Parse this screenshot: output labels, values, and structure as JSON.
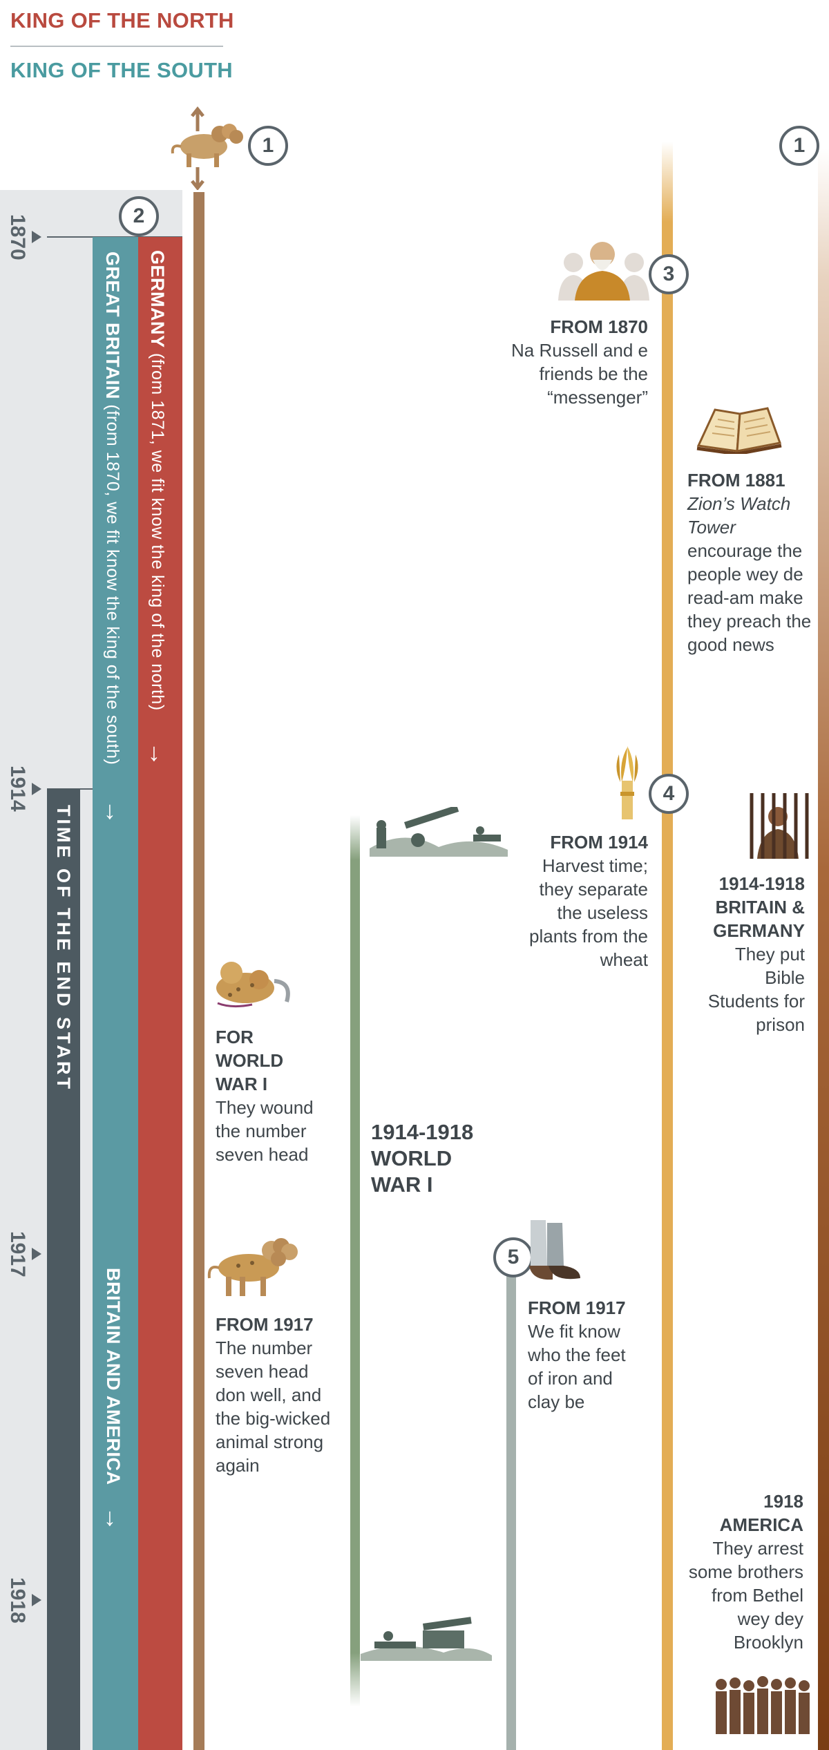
{
  "legend": {
    "north": "KING OF THE NORTH",
    "south": "KING OF THE SOUTH"
  },
  "colors": {
    "north": "#b94a3f",
    "south": "#4a9ba0",
    "britain": "#5b9aa3",
    "germany": "#bc4b41",
    "end": "#4d5a61",
    "beast": "#a57c58",
    "wwi": "#86a07d",
    "feet": "#a5b1ad",
    "harvest": "#e3ad55",
    "brown": "#8a4a1e"
  },
  "markers": {
    "m1a": "1",
    "m1b": "1",
    "m2": "2",
    "m3": "3",
    "m4": "4",
    "m5": "5"
  },
  "years": {
    "y1870": "1870",
    "y1914": "1914",
    "y1917": "1917",
    "y1918": "1918"
  },
  "bars": {
    "germany_name": "GERMANY",
    "germany_note": " (from 1871, we fit know the king of the north)",
    "britain_name": "GREAT BRITAIN",
    "britain_note": " (from 1870, we fit know the king of the south)",
    "britain_america": "BRITAIN AND AMERICA",
    "end_time": "TIME OF THE END START",
    "arrow": "↓"
  },
  "beast": {
    "wwi_title": "FOR WORLD WAR I",
    "wwi_body": "They wound the number seven head",
    "y1917_title": "FROM 1917",
    "y1917_body": "The number seven head don well, and the big-wicked animal strong again"
  },
  "worldwar": {
    "title1": "1914-1918",
    "title2": "WORLD",
    "title3": "WAR I"
  },
  "feet": {
    "title": "FROM 1917",
    "body": "We fit know who the feet of iron and clay be"
  },
  "harvest": {
    "from1870_title": "FROM 1870",
    "from1870_body": "Na Russell and e friends be the “messenger”",
    "from1914_title": "FROM 1914",
    "from1914_body": "Harvest time; they separate the useless plants from the wheat"
  },
  "right": {
    "from1881_title": "FROM 1881",
    "from1881_italic": "Zion’s Watch Tower",
    "from1881_body": "encourage the people wey de read-am make they preach the good news",
    "prison_title": "1914-1918 BRITAIN & GERMANY",
    "prison_body": "They put Bible Students for prison",
    "america_title": "1918 AMERICA",
    "america_body": "They arrest some brothers from Bethel wey dey Brooklyn"
  },
  "icons": [
    "lion-beast-icon",
    "wounded-beast-icon",
    "healed-beast-icon",
    "russell-portrait-icon",
    "open-bible-icon",
    "wheat-sheaf-icon",
    "prisoner-icon",
    "soldiers-cannon-icon",
    "iron-clay-feet-icon",
    "brothers-group-icon",
    "arrow-up-icon",
    "arrow-down-icon"
  ]
}
